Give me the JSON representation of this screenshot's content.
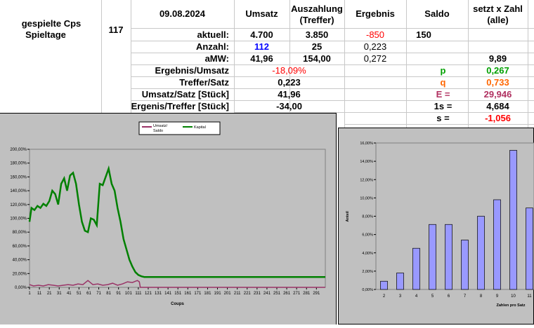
{
  "info": {
    "label_line1": "gespielte Cps",
    "label_line2": "Spieltage",
    "count": "117"
  },
  "header": {
    "date": "09.08.2024",
    "umsatz": "Umsatz",
    "auszahlung_line1": "Auszahlung",
    "auszahlung_line2": "(Treffer)",
    "ergebnis": "Ergebnis",
    "saldo": "Saldo",
    "setzt_line1": "setzt x Zahl",
    "setzt_line2": "(alle)"
  },
  "rows": {
    "aktuell": {
      "label": "aktuell:",
      "umsatz": "4.700",
      "auszahlung": "3.850",
      "ergebnis": "-850",
      "saldo": "150"
    },
    "anzahl": {
      "label": "Anzahl:",
      "umsatz": "112",
      "auszahlung": "25",
      "ergebnis": "0,223"
    },
    "amw": {
      "label": "aMW:",
      "umsatz": "41,96",
      "auszahlung": "154,00",
      "ergebnis": "0,272",
      "setzt": "9,89"
    }
  },
  "stats": [
    {
      "label": "Ergebnis/Umsatz",
      "value": "-18,09%"
    },
    {
      "label": "Treffer/Satz",
      "value": "0,223"
    },
    {
      "label": "Umsatz/Satz [Stück]",
      "value": "41,96"
    },
    {
      "label": "Ergenis/Treffer [Stück]",
      "value": "-34,00"
    }
  ],
  "params": [
    {
      "label": "p",
      "value": "0,267"
    },
    {
      "label": "q",
      "value": "0,733"
    },
    {
      "label": "E =",
      "value": "29,946"
    },
    {
      "label": "1s =",
      "value": "4,684"
    },
    {
      "label": "s =",
      "value": "-1,056"
    }
  ],
  "colors": {
    "red": "#ff0000",
    "blue": "#0000ff",
    "green": "#00a000",
    "orange": "#ff6600",
    "purple": "#b03060"
  },
  "chart_data": [
    {
      "type": "line",
      "xlabel": "Coups",
      "ylim": [
        0,
        200
      ],
      "y_ticks": [
        "0,00%",
        "20,00%",
        "40,00%",
        "60,00%",
        "80,00%",
        "100,00%",
        "120,00%",
        "140,00%",
        "160,00%",
        "180,00%",
        "200,00%"
      ],
      "x_ticks": [
        "1",
        "11",
        "21",
        "31",
        "41",
        "51",
        "61",
        "71",
        "81",
        "91",
        "101",
        "111",
        "121",
        "131",
        "141",
        "151",
        "161",
        "171",
        "181",
        "191",
        "201",
        "211",
        "221",
        "231",
        "241",
        "251",
        "261",
        "271",
        "281",
        "291"
      ],
      "legend": [
        {
          "name": "Umsatz/ Saldo",
          "color": "#993366"
        },
        {
          "name": "Kapital",
          "color": "#008000"
        }
      ],
      "series": [
        {
          "name": "Kapital",
          "color": "#008000",
          "x": [
            1,
            3,
            6,
            9,
            12,
            15,
            18,
            21,
            24,
            27,
            30,
            33,
            36,
            39,
            42,
            45,
            48,
            51,
            54,
            57,
            60,
            63,
            66,
            69,
            72,
            75,
            78,
            81,
            84,
            87,
            90,
            93,
            96,
            99,
            102,
            105,
            108,
            111,
            114,
            117,
            300
          ],
          "y": [
            95,
            115,
            112,
            118,
            115,
            121,
            118,
            125,
            140,
            135,
            120,
            150,
            158,
            140,
            162,
            166,
            150,
            120,
            95,
            82,
            80,
            100,
            98,
            90,
            150,
            148,
            160,
            172,
            150,
            140,
            115,
            95,
            70,
            55,
            40,
            30,
            22,
            18,
            16,
            15,
            15
          ]
        },
        {
          "name": "Umsatz/ Saldo",
          "color": "#993366",
          "x": [
            1,
            5,
            10,
            15,
            20,
            25,
            30,
            35,
            40,
            45,
            50,
            55,
            60,
            65,
            70,
            75,
            80,
            85,
            90,
            95,
            100,
            105,
            110,
            112,
            113,
            300
          ],
          "y": [
            4,
            2,
            3,
            2,
            4,
            3,
            2,
            3,
            4,
            3,
            5,
            4,
            10,
            4,
            5,
            3,
            4,
            6,
            3,
            5,
            8,
            7,
            10,
            8,
            0,
            0
          ]
        }
      ]
    },
    {
      "type": "bar",
      "ylabel": "Anteil",
      "xlabel": "Zahlen pro Satz",
      "ylim": [
        0,
        16
      ],
      "y_ticks": [
        "0,00%",
        "2,00%",
        "4,00%",
        "6,00%",
        "8,00%",
        "10,00%",
        "12,00%",
        "14,00%",
        "16,00%"
      ],
      "categories": [
        "2",
        "3",
        "4",
        "5",
        "6",
        "7",
        "8",
        "9",
        "10",
        "11"
      ],
      "values": [
        0.9,
        1.8,
        4.5,
        7.1,
        7.1,
        5.4,
        8.0,
        9.8,
        15.2,
        8.9
      ]
    }
  ]
}
